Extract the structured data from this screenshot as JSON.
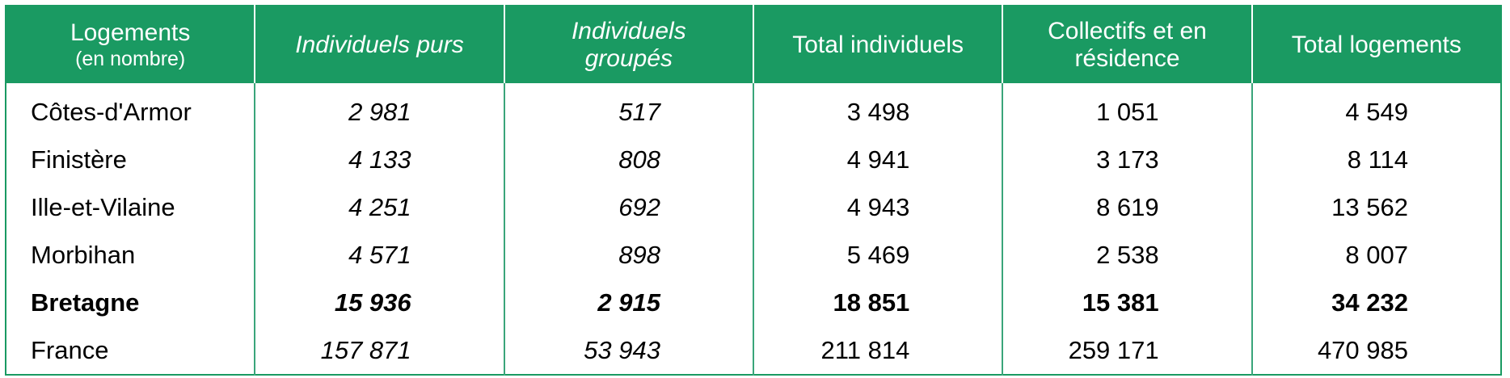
{
  "table": {
    "header": [
      [
        "Logements",
        "(en nombre)"
      ],
      [
        "Individuels purs"
      ],
      [
        "Individuels",
        "groupés"
      ],
      [
        "Total individuels"
      ],
      [
        "Collectifs et en",
        "résidence"
      ],
      [
        "Total logements"
      ]
    ],
    "rows": [
      [
        "Côtes-d'Armor",
        "2 981",
        "517",
        "3 498",
        "1 051",
        "4 549"
      ],
      [
        "Finistère",
        "4 133",
        "808",
        "4 941",
        "3 173",
        "8 114"
      ],
      [
        "Ille-et-Vilaine",
        "4 251",
        "692",
        "4 943",
        "8 619",
        "13 562"
      ],
      [
        "Morbihan",
        "4 571",
        "898",
        "5 469",
        "2 538",
        "8 007"
      ],
      [
        "Bretagne",
        "15 936",
        "2 915",
        "18 851",
        "15 381",
        "34 232"
      ],
      [
        "France",
        "157 871",
        "53 943",
        "211 814",
        "259 171",
        "470 985"
      ]
    ]
  }
}
